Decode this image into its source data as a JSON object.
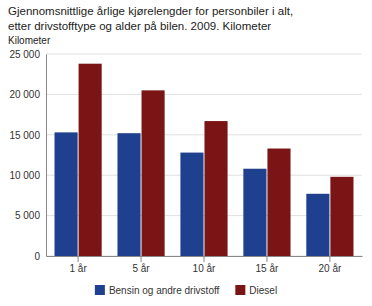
{
  "chart_data": {
    "type": "bar",
    "title": "Gjennomsnittlige årlige kjørelengder for personbiler i alt,",
    "subtitle": "etter drivstofftype og alder på bilen. 2009. Kilometer",
    "ylabel": "Kilometer",
    "categories": [
      "1 år",
      "5 år",
      "10 år",
      "15 år",
      "20 år"
    ],
    "series": [
      {
        "name": "Bensin og andre drivstoff",
        "color": "#1F3F8F",
        "values": [
          15300,
          15200,
          12800,
          10800,
          7700
        ]
      },
      {
        "name": "Diesel",
        "color": "#7B1515",
        "values": [
          23800,
          20500,
          16700,
          13300,
          9800
        ]
      }
    ],
    "ylim": [
      0,
      25000
    ],
    "yticks": [
      0,
      {
        "value": 5000,
        "label": "5 000"
      },
      {
        "value": 10000,
        "label": "10 000"
      },
      {
        "value": 15000,
        "label": "15 000"
      },
      {
        "value": 20000,
        "label": "20 000"
      },
      {
        "value": 25000,
        "label": "25 000"
      }
    ],
    "grid": true,
    "legend": "bottom"
  }
}
